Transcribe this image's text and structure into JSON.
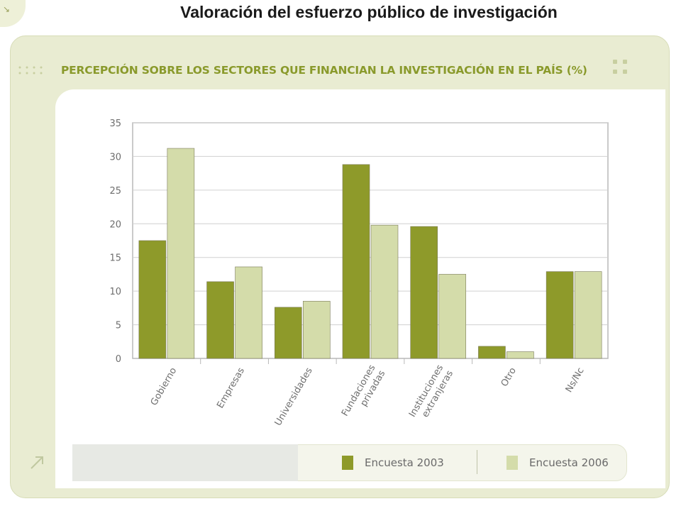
{
  "slide_title": "Valoración del esfuerzo público de investigación",
  "card_title": "PERCEPCIÓN SOBRE LOS SECTORES QUE FINANCIAN LA INVESTIGACIÓN EN EL PAÍS (%)",
  "colors": {
    "series_2003": "#8e9a2a",
    "series_2006": "#d4dcaa",
    "accent": "#8a9a2c",
    "card_bg": "#e9ecd2"
  },
  "icons": {
    "corner": "corner-glyph-icon",
    "arrow": "diagonal-arrow-icon",
    "dots": "dots-decoration-icon"
  },
  "chart_data": {
    "type": "bar",
    "title": "PERCEPCIÓN SOBRE LOS SECTORES QUE FINANCIAN LA INVESTIGACIÓN EN EL PAÍS (%)",
    "categories": [
      "Gobierno",
      "Empresas",
      "Universidades",
      "Fundaciones\nprivadas",
      "Instituciones\nextranjeras",
      "Otro",
      "Ns/Nc"
    ],
    "series": [
      {
        "name": "Encuesta 2003",
        "values": [
          17.5,
          11.4,
          7.6,
          28.8,
          19.6,
          1.8,
          12.9
        ]
      },
      {
        "name": "Encuesta 2006",
        "values": [
          31.2,
          13.6,
          8.5,
          19.8,
          12.5,
          1.0,
          12.9
        ]
      }
    ],
    "ylim": [
      0,
      35
    ],
    "yticks": [
      "0",
      "5",
      "10",
      "15",
      "20",
      "25",
      "30",
      "35"
    ],
    "grid": true,
    "legend_position": "bottom"
  }
}
